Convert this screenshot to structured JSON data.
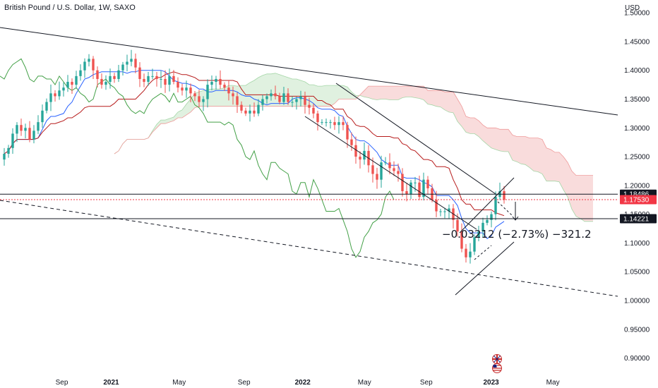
{
  "chart_data": {
    "type": "candlestick",
    "title": "British Pound / U.S. Dollar, 1W, SAXO",
    "currency": "USD",
    "ylim": [
      0.87,
      1.51
    ],
    "y_ticks": [
      "1.50000",
      "1.45000",
      "1.40000",
      "1.35000",
      "1.30000",
      "1.25000",
      "1.20000",
      "1.15000",
      "1.10000",
      "1.05000",
      "1.00000",
      "0.95000",
      "0.90000"
    ],
    "y_tick_values": [
      1.5,
      1.45,
      1.4,
      1.35,
      1.3,
      1.25,
      1.2,
      1.15,
      1.1,
      1.05,
      1.0,
      0.95,
      0.9
    ],
    "x_ticks": [
      {
        "label": "Sep",
        "t": 0.1,
        "bold": false
      },
      {
        "label": "2021",
        "t": 0.18,
        "bold": true
      },
      {
        "label": "May",
        "t": 0.29,
        "bold": false
      },
      {
        "label": "Sep",
        "t": 0.395,
        "bold": false
      },
      {
        "label": "2022",
        "t": 0.49,
        "bold": true
      },
      {
        "label": "May",
        "t": 0.59,
        "bold": false
      },
      {
        "label": "Sep",
        "t": 0.69,
        "bold": false
      },
      {
        "label": "2023",
        "t": 0.795,
        "bold": true
      },
      {
        "label": "May",
        "t": 0.895,
        "bold": false
      }
    ],
    "price_levels": [
      {
        "label": "1.18486",
        "value": 1.18486,
        "style": "solid",
        "color": "#131722"
      },
      {
        "label": "1.17530",
        "value": 1.1753,
        "style": "dotted",
        "color": "#f23645"
      },
      {
        "label": "1.14221",
        "value": 1.14221,
        "style": "solid",
        "color": "#131722"
      }
    ],
    "measurement_label": "−0.03212 (−2.73%) −321.2",
    "colors": {
      "up": "#26a69a",
      "down": "#ef5350",
      "conversion": "#2962ff",
      "base": "#b71c1c",
      "lagging": "#43a047",
      "kumo_up": "#a5d6a7",
      "kumo_down": "#ef9a9a",
      "trendline": "#131722"
    },
    "closes": [
      1.255,
      1.265,
      1.29,
      1.305,
      1.295,
      1.3,
      1.28,
      1.295,
      1.31,
      1.33,
      1.345,
      1.36,
      1.355,
      1.365,
      1.37,
      1.38,
      1.375,
      1.39,
      1.4,
      1.415,
      1.42,
      1.4,
      1.385,
      1.375,
      1.38,
      1.39,
      1.385,
      1.4,
      1.41,
      1.415,
      1.42,
      1.405,
      1.385,
      1.38,
      1.39,
      1.39,
      1.385,
      1.385,
      1.375,
      1.39,
      1.38,
      1.37,
      1.365,
      1.37,
      1.36,
      1.355,
      1.345,
      1.35,
      1.375,
      1.38,
      1.385,
      1.375,
      1.37,
      1.36,
      1.355,
      1.34,
      1.33,
      1.325,
      1.33,
      1.325,
      1.34,
      1.35,
      1.355,
      1.36,
      1.355,
      1.345,
      1.36,
      1.345,
      1.345,
      1.35,
      1.355,
      1.34,
      1.335,
      1.325,
      1.31,
      1.31,
      1.31,
      1.31,
      1.305,
      1.31,
      1.305,
      1.28,
      1.27,
      1.25,
      1.245,
      1.26,
      1.235,
      1.22,
      1.21,
      1.24,
      1.24,
      1.23,
      1.225,
      1.22,
      1.19,
      1.185,
      1.205,
      1.205,
      1.18,
      1.21,
      1.195,
      1.175,
      1.155,
      1.155,
      1.155,
      1.16,
      1.14,
      1.12,
      1.09,
      1.075,
      1.085,
      1.11,
      1.12,
      1.135,
      1.14,
      1.15,
      1.18,
      1.19,
      1.175
    ]
  }
}
